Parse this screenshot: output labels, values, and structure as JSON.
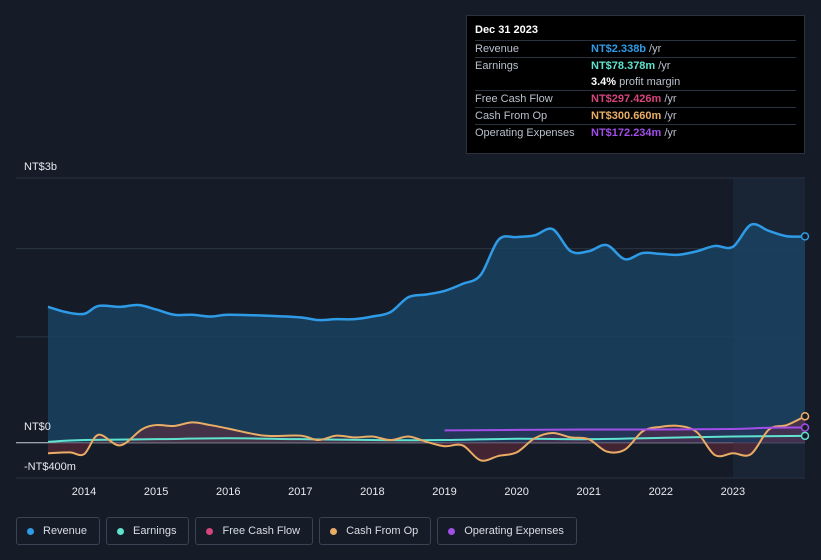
{
  "colors": {
    "revenue": "#2f9be6",
    "earnings": "#5fe3cf",
    "free_cash_flow": "#d5447b",
    "cash_from_op": "#e9ad65",
    "operating_expenses": "#a24ee8"
  },
  "tooltip": {
    "date": "Dec 31 2023",
    "rows": [
      {
        "label": "Revenue",
        "value": "NT$2.338b",
        "unit": "/yr",
        "color": "#2f9be6"
      },
      {
        "label": "Earnings",
        "value": "NT$78.378m",
        "unit": "/yr",
        "color": "#5fe3cf"
      },
      {
        "label": "",
        "value": "3.4%",
        "unit": "profit margin",
        "color": "#ffffff"
      },
      {
        "label": "Free Cash Flow",
        "value": "NT$297.426m",
        "unit": "/yr",
        "color": "#d5447b"
      },
      {
        "label": "Cash From Op",
        "value": "NT$300.660m",
        "unit": "/yr",
        "color": "#e9ad65"
      },
      {
        "label": "Operating Expenses",
        "value": "NT$172.234m",
        "unit": "/yr",
        "color": "#a24ee8"
      }
    ]
  },
  "legend": [
    {
      "label": "Revenue",
      "color": "#2f9be6"
    },
    {
      "label": "Earnings",
      "color": "#5fe3cf"
    },
    {
      "label": "Free Cash Flow",
      "color": "#d5447b"
    },
    {
      "label": "Cash From Op",
      "color": "#e9ad65"
    },
    {
      "label": "Operating Expenses",
      "color": "#a24ee8"
    }
  ],
  "chart_data": {
    "type": "area",
    "title": "",
    "xlabel": "",
    "ylabel": "",
    "y_axis_labels": [
      "NT$3b",
      "NT$0",
      "-NT$400m"
    ],
    "ylim": [
      -400,
      3000
    ],
    "xlim": [
      2013.5,
      2024.0
    ],
    "x_ticks": [
      "2014",
      "2015",
      "2016",
      "2017",
      "2018",
      "2019",
      "2020",
      "2021",
      "2022",
      "2023"
    ],
    "units": "NT$ millions",
    "series": [
      {
        "name": "Revenue",
        "x": [
          2013.5,
          2013.75,
          2014.0,
          2014.2,
          2014.5,
          2014.75,
          2015.0,
          2015.25,
          2015.5,
          2015.75,
          2016.0,
          2016.5,
          2017.0,
          2017.25,
          2017.5,
          2017.75,
          2018.0,
          2018.25,
          2018.5,
          2018.75,
          2019.0,
          2019.25,
          2019.5,
          2019.75,
          2020.0,
          2020.25,
          2020.5,
          2020.75,
          2021.0,
          2021.25,
          2021.5,
          2021.75,
          2022.0,
          2022.25,
          2022.5,
          2022.75,
          2023.0,
          2023.25,
          2023.5,
          2023.75,
          2024.0
        ],
        "values": [
          1540,
          1480,
          1460,
          1550,
          1540,
          1560,
          1510,
          1450,
          1450,
          1430,
          1450,
          1440,
          1420,
          1390,
          1400,
          1400,
          1430,
          1480,
          1650,
          1680,
          1720,
          1800,
          1900,
          2300,
          2330,
          2350,
          2420,
          2170,
          2170,
          2240,
          2080,
          2150,
          2140,
          2130,
          2170,
          2230,
          2220,
          2470,
          2400,
          2340,
          2338
        ]
      },
      {
        "name": "Earnings",
        "x": [
          2013.5,
          2014.0,
          2015.0,
          2016.0,
          2017.0,
          2018.0,
          2019.0,
          2020.0,
          2021.0,
          2022.0,
          2023.0,
          2024.0
        ],
        "values": [
          10,
          30,
          40,
          50,
          40,
          30,
          30,
          45,
          40,
          55,
          70,
          78
        ]
      },
      {
        "name": "Free Cash Flow",
        "x": [
          2013.5,
          2013.8,
          2014.0,
          2014.2,
          2014.5,
          2014.8,
          2015.0,
          2015.25,
          2015.5,
          2015.75,
          2016.0,
          2016.5,
          2017.0,
          2017.25,
          2017.5,
          2017.75,
          2018.0,
          2018.25,
          2018.5,
          2018.75,
          2019.0,
          2019.25,
          2019.5,
          2019.75,
          2020.0,
          2020.25,
          2020.5,
          2020.75,
          2021.0,
          2021.25,
          2021.5,
          2021.75,
          2022.0,
          2022.25,
          2022.5,
          2022.75,
          2023.0,
          2023.25,
          2023.5,
          2023.75,
          2024.0
        ],
        "values": [
          -120,
          -110,
          -130,
          90,
          -30,
          150,
          200,
          190,
          230,
          200,
          160,
          80,
          60,
          30,
          60,
          50,
          40,
          30,
          30,
          10,
          -40,
          -50,
          -200,
          -150,
          -100,
          40,
          90,
          60,
          30,
          -100,
          -80,
          130,
          180,
          190,
          120,
          -140,
          -120,
          -130,
          150,
          200,
          297
        ]
      },
      {
        "name": "Cash From Op",
        "x": [
          2013.5,
          2013.8,
          2014.0,
          2014.2,
          2014.5,
          2014.8,
          2015.0,
          2015.25,
          2015.5,
          2015.75,
          2016.0,
          2016.5,
          2017.0,
          2017.25,
          2017.5,
          2017.75,
          2018.0,
          2018.25,
          2018.5,
          2018.75,
          2019.0,
          2019.25,
          2019.5,
          2019.75,
          2020.0,
          2020.25,
          2020.5,
          2020.75,
          2021.0,
          2021.25,
          2021.5,
          2021.75,
          2022.0,
          2022.25,
          2022.5,
          2022.75,
          2023.0,
          2023.25,
          2023.5,
          2023.75,
          2024.0
        ],
        "values": [
          -120,
          -110,
          -130,
          90,
          -30,
          150,
          200,
          190,
          230,
          200,
          160,
          80,
          80,
          30,
          80,
          60,
          70,
          30,
          70,
          10,
          -40,
          -30,
          -200,
          -150,
          -110,
          50,
          110,
          60,
          40,
          -100,
          -80,
          130,
          180,
          190,
          120,
          -140,
          -120,
          -130,
          150,
          200,
          300
        ]
      },
      {
        "name": "Operating Expenses",
        "x": [
          2019.0,
          2020.0,
          2021.0,
          2022.0,
          2023.0,
          2023.5,
          2024.0
        ],
        "values": [
          140,
          145,
          150,
          150,
          155,
          170,
          172
        ]
      }
    ]
  }
}
